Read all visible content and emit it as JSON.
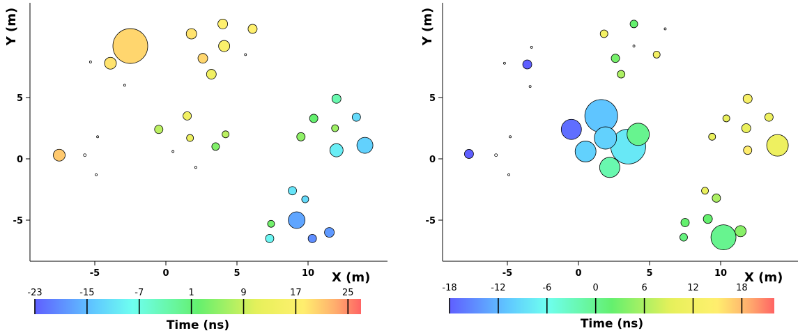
{
  "chart_data": [
    {
      "type": "scatter",
      "title": "",
      "xlabel": "X (m)",
      "ylabel": "Y (m)",
      "xlim": [
        -10,
        15.9
      ],
      "ylim": [
        -8.3,
        12.6
      ],
      "x_ticks": [
        -5,
        0,
        5,
        10
      ],
      "x_tick_labels": [
        "-5",
        "0",
        "5",
        "10"
      ],
      "y_ticks": [
        -5,
        0,
        5
      ],
      "y_tick_labels": [
        "-5",
        "0",
        "5"
      ],
      "grid": false,
      "colorbar": {
        "label": "Time (ns)",
        "range": [
          -23,
          27
        ],
        "ticks": [
          -23,
          -15,
          -7,
          1,
          9,
          17,
          25
        ],
        "tick_labels": [
          "-23",
          "-15",
          "-7",
          "1",
          "9",
          "17",
          "25"
        ]
      },
      "points": [
        {
          "x": -2.5,
          "y": 9.2,
          "size": 50,
          "time": 20
        },
        {
          "x": -3.9,
          "y": 7.8,
          "size": 17,
          "time": 19
        },
        {
          "x": -5.3,
          "y": 7.9,
          "size": 3,
          "time": null
        },
        {
          "x": -2.9,
          "y": 6.0,
          "size": 3,
          "time": null
        },
        {
          "x": 1.8,
          "y": 10.2,
          "size": 15,
          "time": 19
        },
        {
          "x": 4.0,
          "y": 11.0,
          "size": 14,
          "time": 18
        },
        {
          "x": 6.1,
          "y": 10.6,
          "size": 13,
          "time": 18
        },
        {
          "x": 2.6,
          "y": 8.2,
          "size": 14,
          "time": 20
        },
        {
          "x": 4.1,
          "y": 9.2,
          "size": 16,
          "time": 17
        },
        {
          "x": 3.2,
          "y": 6.9,
          "size": 14,
          "time": 14
        },
        {
          "x": 5.6,
          "y": 8.5,
          "size": 3,
          "time": null
        },
        {
          "x": -7.5,
          "y": 0.3,
          "size": 17,
          "time": 21
        },
        {
          "x": -5.7,
          "y": 0.3,
          "size": 4,
          "time": null
        },
        {
          "x": -4.8,
          "y": 1.8,
          "size": 3,
          "time": null
        },
        {
          "x": -4.9,
          "y": -1.3,
          "size": 3,
          "time": null
        },
        {
          "x": -0.5,
          "y": 2.4,
          "size": 12,
          "time": 8
        },
        {
          "x": 1.5,
          "y": 3.5,
          "size": 12,
          "time": 14
        },
        {
          "x": 1.7,
          "y": 1.7,
          "size": 10,
          "time": 13
        },
        {
          "x": 4.2,
          "y": 2.0,
          "size": 10,
          "time": 8
        },
        {
          "x": 3.5,
          "y": 1.0,
          "size": 11,
          "time": 4
        },
        {
          "x": 0.5,
          "y": 0.6,
          "size": 3,
          "time": null
        },
        {
          "x": 2.1,
          "y": -0.7,
          "size": 3,
          "time": null
        },
        {
          "x": 12.0,
          "y": 4.9,
          "size": 13,
          "time": -3
        },
        {
          "x": 10.4,
          "y": 3.3,
          "size": 12,
          "time": 2
        },
        {
          "x": 13.4,
          "y": 3.4,
          "size": 12,
          "time": -12
        },
        {
          "x": 11.9,
          "y": 2.5,
          "size": 10,
          "time": 6
        },
        {
          "x": 9.5,
          "y": 1.8,
          "size": 12,
          "time": 5
        },
        {
          "x": 12.0,
          "y": 0.7,
          "size": 19,
          "time": -10
        },
        {
          "x": 14.0,
          "y": 1.1,
          "size": 23,
          "time": -13
        },
        {
          "x": 8.9,
          "y": -2.6,
          "size": 12,
          "time": -11
        },
        {
          "x": 9.8,
          "y": -3.3,
          "size": 10,
          "time": -12
        },
        {
          "x": 7.4,
          "y": -5.3,
          "size": 10,
          "time": 3
        },
        {
          "x": 9.2,
          "y": -5.0,
          "size": 24,
          "time": -17
        },
        {
          "x": 11.5,
          "y": -6.0,
          "size": 14,
          "time": -18
        },
        {
          "x": 7.3,
          "y": -6.5,
          "size": 12,
          "time": -9
        },
        {
          "x": 10.3,
          "y": -6.5,
          "size": 12,
          "time": -19
        }
      ]
    },
    {
      "type": "scatter",
      "title": "",
      "xlabel": "X (m)",
      "ylabel": "Y (m)",
      "xlim": [
        -10,
        15.9
      ],
      "ylim": [
        -8.3,
        12.6
      ],
      "x_ticks": [
        -5,
        0,
        5,
        10
      ],
      "x_tick_labels": [
        "-5",
        "0",
        "5",
        "10"
      ],
      "y_ticks": [
        -5,
        0,
        5
      ],
      "y_tick_labels": [
        "-5",
        "0",
        "5"
      ],
      "grid": false,
      "colorbar": {
        "label": "Time (ns)",
        "range": [
          -18,
          22
        ],
        "ticks": [
          -18,
          -12,
          -6,
          0,
          6,
          12,
          18
        ],
        "tick_labels": [
          "-18",
          "-12",
          "-6",
          "0",
          "6",
          "12",
          "18"
        ]
      },
      "points": [
        {
          "x": 1.8,
          "y": 10.2,
          "size": 11,
          "time": 12
        },
        {
          "x": 3.9,
          "y": 11.0,
          "size": 11,
          "time": 2
        },
        {
          "x": 6.1,
          "y": 10.6,
          "size": 3,
          "time": null
        },
        {
          "x": 2.6,
          "y": 8.2,
          "size": 12,
          "time": 3
        },
        {
          "x": 3.9,
          "y": 9.2,
          "size": 3,
          "time": null
        },
        {
          "x": 3.0,
          "y": 6.9,
          "size": 11,
          "time": 6
        },
        {
          "x": 5.5,
          "y": 8.5,
          "size": 10,
          "time": 12
        },
        {
          "x": -3.3,
          "y": 9.1,
          "size": 3,
          "time": null
        },
        {
          "x": -5.2,
          "y": 7.8,
          "size": 3,
          "time": null
        },
        {
          "x": -3.6,
          "y": 7.7,
          "size": 13,
          "time": -18
        },
        {
          "x": -3.4,
          "y": 5.9,
          "size": 3,
          "time": null
        },
        {
          "x": -7.7,
          "y": 0.4,
          "size": 13,
          "time": -18
        },
        {
          "x": -5.8,
          "y": 0.3,
          "size": 4,
          "time": null
        },
        {
          "x": -4.8,
          "y": 1.8,
          "size": 3,
          "time": null
        },
        {
          "x": -4.9,
          "y": -1.3,
          "size": 3,
          "time": null
        },
        {
          "x": -0.5,
          "y": 2.4,
          "size": 29,
          "time": -17
        },
        {
          "x": 1.6,
          "y": 3.5,
          "size": 47,
          "time": -11
        },
        {
          "x": 1.9,
          "y": 1.7,
          "size": 32,
          "time": -10
        },
        {
          "x": 4.2,
          "y": 2.0,
          "size": 32,
          "time": 0
        },
        {
          "x": 3.5,
          "y": 1.0,
          "size": 50,
          "time": -8
        },
        {
          "x": 0.5,
          "y": 0.6,
          "size": 30,
          "time": -10
        },
        {
          "x": 2.2,
          "y": -0.7,
          "size": 29,
          "time": -2
        },
        {
          "x": 11.9,
          "y": 4.9,
          "size": 13,
          "time": 13
        },
        {
          "x": 10.4,
          "y": 3.3,
          "size": 10,
          "time": 10
        },
        {
          "x": 13.4,
          "y": 3.4,
          "size": 12,
          "time": 11
        },
        {
          "x": 11.8,
          "y": 2.5,
          "size": 13,
          "time": 10
        },
        {
          "x": 9.4,
          "y": 1.8,
          "size": 10,
          "time": 10
        },
        {
          "x": 11.9,
          "y": 0.7,
          "size": 12,
          "time": 15
        },
        {
          "x": 14.0,
          "y": 1.1,
          "size": 31,
          "time": 11
        },
        {
          "x": 8.9,
          "y": -2.6,
          "size": 10,
          "time": 10
        },
        {
          "x": 9.7,
          "y": -3.2,
          "size": 12,
          "time": 6
        },
        {
          "x": 7.5,
          "y": -5.2,
          "size": 12,
          "time": 2
        },
        {
          "x": 9.1,
          "y": -4.9,
          "size": 13,
          "time": 2
        },
        {
          "x": 11.4,
          "y": -5.9,
          "size": 16,
          "time": 4
        },
        {
          "x": 7.4,
          "y": -6.4,
          "size": 11,
          "time": 1
        },
        {
          "x": 10.2,
          "y": -6.4,
          "size": 36,
          "time": 0
        }
      ]
    }
  ]
}
